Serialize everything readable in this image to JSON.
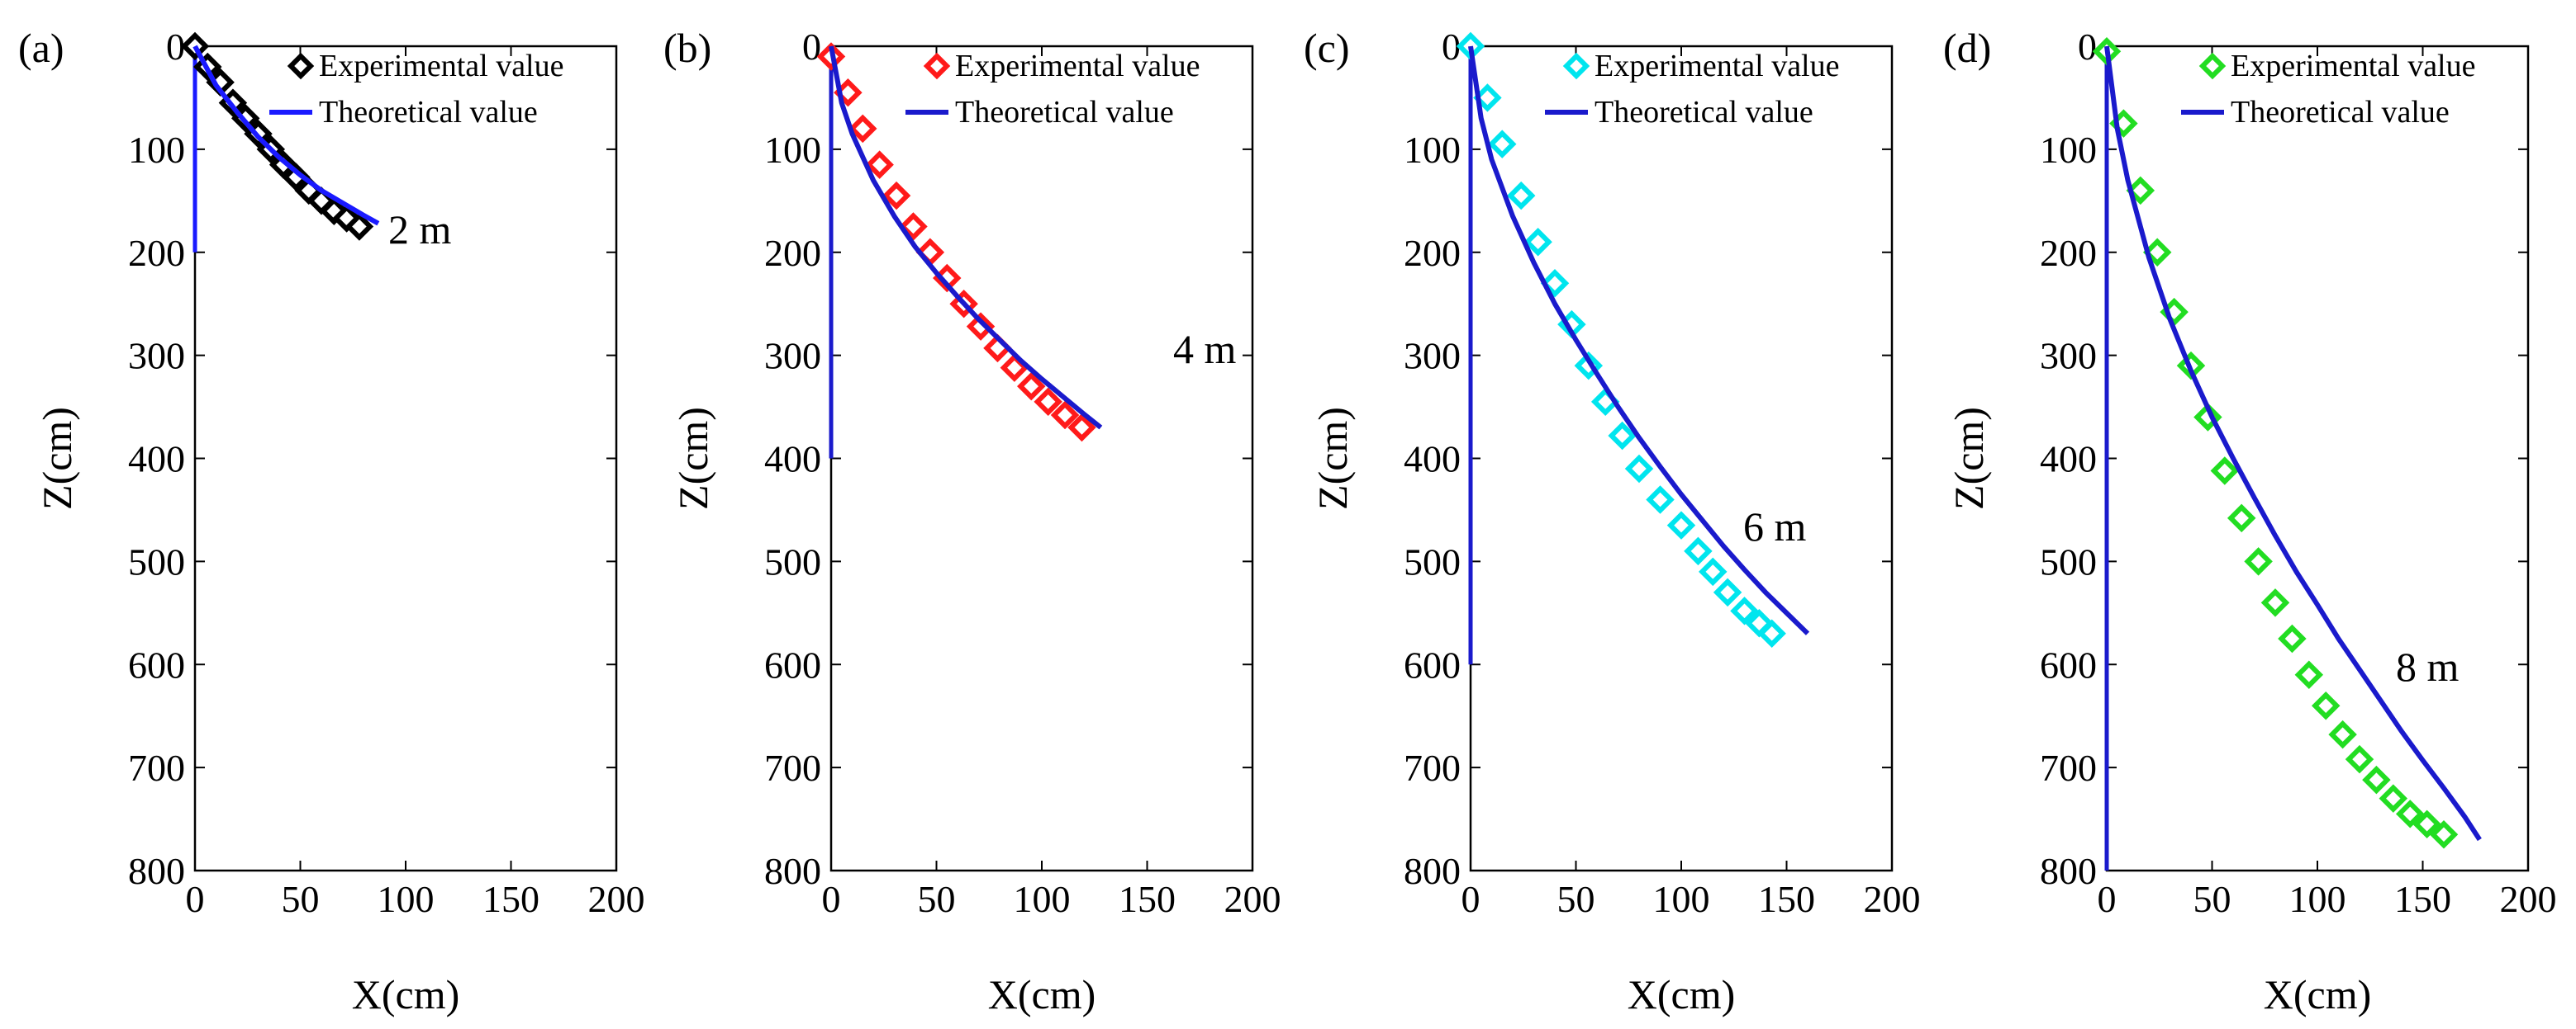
{
  "chart_data": [
    {
      "panel": "(a)",
      "type": "line",
      "xlabel": "X(cm)",
      "ylabel": "Z(cm)",
      "xlim": [
        0,
        200
      ],
      "ylim": [
        800,
        0
      ],
      "xticks": [
        "0",
        "50",
        "100",
        "150",
        "200"
      ],
      "yticks": [
        "0",
        "100",
        "200",
        "300",
        "400",
        "500",
        "600",
        "700",
        "800"
      ],
      "annotation": "2 m",
      "pile_length": 200,
      "legend": [
        "Experimental value",
        "Theoretical value"
      ],
      "series": [
        {
          "name": "Experimental value",
          "color": "#000000",
          "marker": "diamond",
          "x": [
            0,
            6,
            12,
            18,
            24,
            30,
            36,
            42,
            48,
            54,
            60,
            66,
            72,
            78
          ],
          "y": [
            0,
            20,
            35,
            55,
            70,
            85,
            100,
            115,
            127,
            140,
            150,
            160,
            167,
            175
          ]
        },
        {
          "name": "Theoretical value",
          "color": "#1a1aff",
          "x": [
            0,
            10,
            20,
            30,
            40,
            50,
            60,
            70,
            80,
            87
          ],
          "y": [
            0,
            38,
            64,
            88,
            108,
            125,
            140,
            152,
            164,
            172
          ]
        }
      ]
    },
    {
      "panel": "(b)",
      "type": "line",
      "xlabel": "X(cm)",
      "ylabel": "Z(cm)",
      "xlim": [
        0,
        200
      ],
      "ylim": [
        800,
        0
      ],
      "xticks": [
        "0",
        "50",
        "100",
        "150",
        "200"
      ],
      "yticks": [
        "0",
        "100",
        "200",
        "300",
        "400",
        "500",
        "600",
        "700",
        "800"
      ],
      "annotation": "4 m",
      "pile_length": 400,
      "legend": [
        "Experimental value",
        "Theoretical value"
      ],
      "series": [
        {
          "name": "Experimental value",
          "color": "#ff1a1a",
          "marker": "diamond",
          "x": [
            0,
            8,
            15,
            23,
            31,
            39,
            47,
            55,
            63,
            71,
            79,
            87,
            95,
            103,
            111,
            119
          ],
          "y": [
            10,
            45,
            80,
            115,
            145,
            175,
            200,
            225,
            250,
            272,
            293,
            312,
            330,
            345,
            358,
            370
          ]
        },
        {
          "name": "Theoretical value",
          "color": "#1a1acc",
          "x": [
            0,
            5,
            10,
            20,
            30,
            40,
            50,
            60,
            70,
            80,
            90,
            100,
            110,
            120,
            128
          ],
          "y": [
            0,
            55,
            85,
            130,
            165,
            195,
            220,
            243,
            265,
            285,
            305,
            323,
            340,
            357,
            370
          ]
        }
      ]
    },
    {
      "panel": "(c)",
      "type": "line",
      "xlabel": "X(cm)",
      "ylabel": "Z(cm)",
      "xlim": [
        0,
        200
      ],
      "ylim": [
        800,
        0
      ],
      "xticks": [
        "0",
        "50",
        "100",
        "150",
        "200"
      ],
      "yticks": [
        "0",
        "100",
        "200",
        "300",
        "400",
        "500",
        "600",
        "700",
        "800"
      ],
      "annotation": "6 m",
      "pile_length": 600,
      "legend": [
        "Experimental value",
        "Theoretical value"
      ],
      "series": [
        {
          "name": "Experimental value",
          "color": "#00e5ee",
          "marker": "diamond",
          "x": [
            0,
            8,
            15,
            24,
            32,
            40,
            48,
            56,
            64,
            72,
            80,
            90,
            100,
            108,
            115,
            122,
            130,
            137,
            143
          ],
          "y": [
            0,
            50,
            95,
            145,
            190,
            230,
            270,
            310,
            345,
            378,
            410,
            440,
            465,
            490,
            510,
            530,
            548,
            560,
            570
          ]
        },
        {
          "name": "Theoretical value",
          "color": "#1a1acc",
          "x": [
            0,
            5,
            10,
            20,
            30,
            40,
            50,
            60,
            70,
            80,
            90,
            100,
            110,
            120,
            130,
            140,
            150,
            160
          ],
          "y": [
            0,
            70,
            110,
            165,
            210,
            250,
            285,
            318,
            350,
            380,
            408,
            435,
            460,
            485,
            508,
            530,
            550,
            570
          ]
        }
      ]
    },
    {
      "panel": "(d)",
      "type": "line",
      "xlabel": "X(cm)",
      "ylabel": "Z(cm)",
      "xlim": [
        0,
        200
      ],
      "ylim": [
        800,
        0
      ],
      "xticks": [
        "0",
        "50",
        "100",
        "150",
        "200"
      ],
      "yticks": [
        "0",
        "100",
        "200",
        "300",
        "400",
        "500",
        "600",
        "700",
        "800"
      ],
      "annotation": "8 m",
      "pile_length": 800,
      "legend": [
        "Experimental value",
        "Theoretical value"
      ],
      "series": [
        {
          "name": "Experimental value",
          "color": "#22dd22",
          "marker": "diamond",
          "x": [
            0,
            8,
            16,
            24,
            32,
            40,
            48,
            56,
            64,
            72,
            80,
            88,
            96,
            104,
            112,
            120,
            128,
            136,
            144,
            152,
            160
          ],
          "y": [
            5,
            75,
            140,
            200,
            258,
            310,
            360,
            412,
            458,
            500,
            540,
            575,
            610,
            640,
            668,
            692,
            712,
            730,
            745,
            755,
            765
          ]
        },
        {
          "name": "Theoretical value",
          "color": "#1a1acc",
          "x": [
            0,
            5,
            10,
            20,
            30,
            40,
            50,
            60,
            70,
            80,
            90,
            100,
            110,
            120,
            130,
            140,
            150,
            160,
            170,
            177
          ],
          "y": [
            0,
            80,
            130,
            205,
            265,
            315,
            360,
            400,
            438,
            475,
            510,
            542,
            575,
            605,
            635,
            665,
            693,
            720,
            748,
            770
          ]
        }
      ]
    }
  ]
}
